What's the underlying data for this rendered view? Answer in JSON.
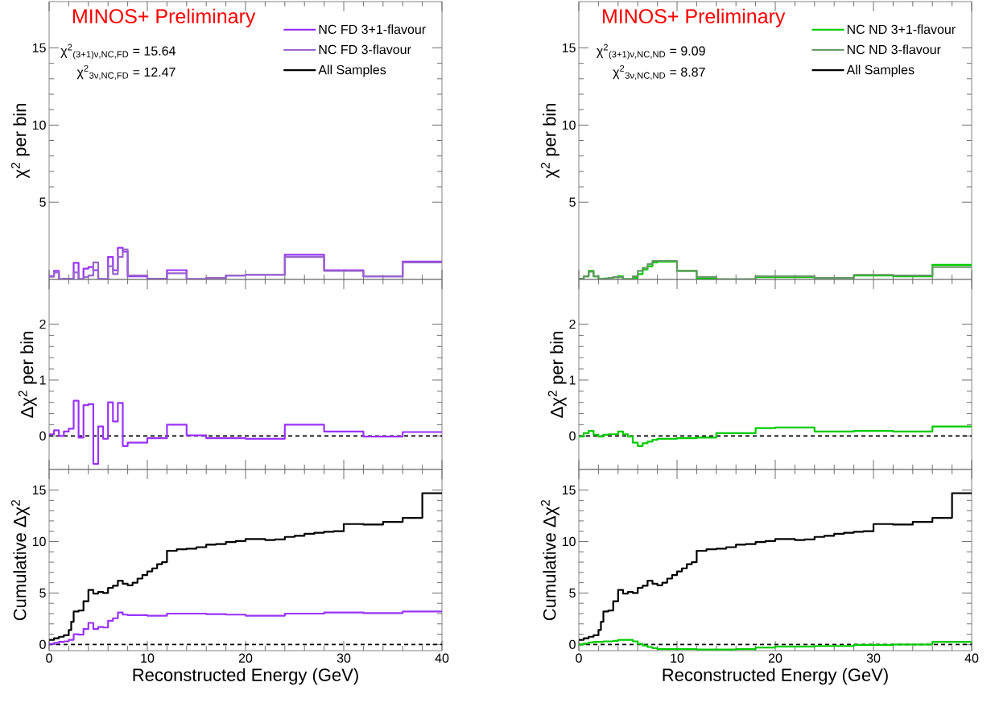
{
  "chart_data": [
    {
      "type": "step",
      "title": "MINOS+ Preliminary",
      "ylabel": "χ$^{2}$ per bin",
      "annotations": [
        "χ$^{2}$$_{(3+1)ν,NC,FD}$ = 15.64",
        "χ$^{2}$$_{3ν,NC,FD}$ = 12.47"
      ],
      "x": [
        0,
        0.5,
        1,
        1.5,
        2,
        2.5,
        3,
        3.5,
        4,
        4.5,
        5,
        5.5,
        6,
        6.5,
        7,
        7.5,
        8,
        10,
        12,
        14,
        16,
        18,
        20,
        24,
        28,
        32,
        36,
        40
      ],
      "series": [
        {
          "name": "NC FD 3+1-flavour",
          "color": "#9933ff",
          "values": [
            0.22,
            0.56,
            0.02,
            0.05,
            0.05,
            1.08,
            0.02,
            0.7,
            0.8,
            0.6,
            0.02,
            0.02,
            1.45,
            0.6,
            2.05,
            1.8,
            0.2,
            0.05,
            0.6,
            0.02,
            0.1,
            0.25,
            0.3,
            1.6,
            0.6,
            0.2,
            1.15,
            1.15
          ]
        },
        {
          "name": "NC FD 3-flavour",
          "color": "#9966cc",
          "values": [
            0.18,
            0.45,
            0.02,
            0.05,
            0.05,
            0.45,
            0.02,
            0.15,
            0.25,
            1.1,
            0.02,
            0.02,
            0.85,
            0.35,
            1.45,
            1.95,
            0.25,
            0.05,
            0.4,
            0.02,
            0.1,
            0.25,
            0.3,
            1.45,
            0.55,
            0.2,
            1.1,
            1.1
          ]
        }
      ],
      "xlim": [
        0,
        40
      ],
      "ylim": [
        0,
        18
      ],
      "xticks": [
        0,
        10,
        20,
        30,
        40
      ],
      "yticks": [
        5,
        10,
        15
      ],
      "tick_labels": "y",
      "legend": "top right"
    },
    {
      "type": "step",
      "title": "MINOS+ Preliminary",
      "ylabel": "χ$^{2}$ per bin",
      "annotations": [
        "χ$^{2}$$_{(3+1)ν,NC,ND}$ = 9.09",
        "χ$^{2}$$_{3ν,NC,ND}$ = 8.87"
      ],
      "x": [
        0,
        0.5,
        1,
        1.5,
        2,
        2.5,
        3,
        3.5,
        4,
        4.5,
        5,
        5.5,
        6,
        6.5,
        7,
        7.5,
        8,
        10,
        12,
        14,
        16,
        18,
        20,
        24,
        28,
        32,
        36,
        40
      ],
      "series": [
        {
          "name": "NC ND 3+1-flavour",
          "color": "#00cc00",
          "values": [
            0.05,
            0.2,
            0.55,
            0.2,
            0.02,
            0.06,
            0.1,
            0.15,
            0.2,
            0.02,
            0.02,
            0.1,
            0.35,
            0.65,
            0.85,
            1.1,
            1.15,
            0.55,
            0.05,
            0.0,
            0.0,
            0.15,
            0.15,
            0.1,
            0.25,
            0.2,
            0.95,
            0.95
          ]
        },
        {
          "name": "NC ND 3-flavour",
          "color": "#669966",
          "values": [
            0.05,
            0.2,
            0.5,
            0.2,
            0.02,
            0.05,
            0.1,
            0.15,
            0.15,
            0.02,
            0.02,
            0.2,
            0.55,
            0.75,
            1.0,
            1.2,
            1.2,
            0.55,
            0.15,
            0.02,
            0.02,
            0.2,
            0.2,
            0.1,
            0.3,
            0.25,
            0.8,
            0.8
          ]
        }
      ],
      "xlim": [
        0,
        40
      ],
      "ylim": [
        0,
        18
      ],
      "xticks": [
        0,
        10,
        20,
        30,
        40
      ],
      "yticks": [
        5,
        10,
        15
      ],
      "tick_labels": "y",
      "legend": "top right"
    },
    {
      "type": "step",
      "ylabel": "Δχ$^{2}$ per bin",
      "x": [
        0,
        0.5,
        1,
        1.5,
        2,
        2.5,
        3,
        3.5,
        4,
        4.5,
        5,
        5.5,
        6,
        6.5,
        7,
        7.5,
        8,
        10,
        12,
        14,
        16,
        18,
        20,
        24,
        28,
        32,
        36,
        40
      ],
      "series": [
        {
          "color": "#9933ff",
          "values": [
            0.03,
            0.1,
            0.0,
            0.08,
            0.13,
            0.63,
            -0.03,
            0.55,
            0.57,
            -0.5,
            0.17,
            -0.05,
            0.6,
            0.26,
            0.59,
            -0.18,
            -0.12,
            -0.04,
            0.2,
            0.01,
            -0.04,
            -0.04,
            -0.05,
            0.2,
            0.08,
            -0.01,
            0.07,
            0.07
          ]
        }
      ],
      "ref_lines": [
        {
          "axis": "y",
          "value": 0,
          "color": "#000000",
          "line_style": "dashed"
        }
      ],
      "xlim": [
        0,
        40
      ],
      "ylim": [
        -0.6,
        2.8
      ],
      "xticks": [
        0,
        10,
        20,
        30,
        40
      ],
      "yticks": [
        0,
        1,
        2
      ],
      "tick_labels": "y"
    },
    {
      "type": "step",
      "ylabel": "Δχ$^{2}$ per bin",
      "x": [
        0,
        0.5,
        1,
        1.5,
        2,
        2.5,
        3,
        3.5,
        4,
        4.5,
        5,
        5.5,
        6,
        6.5,
        7,
        7.5,
        8,
        10,
        12,
        14,
        16,
        18,
        20,
        24,
        28,
        32,
        36,
        40
      ],
      "series": [
        {
          "color": "#00cc00",
          "values": [
            -0.01,
            0.05,
            0.09,
            0.02,
            -0.01,
            0.02,
            0.03,
            0.03,
            0.08,
            0.03,
            -0.01,
            -0.12,
            -0.18,
            -0.13,
            -0.1,
            -0.07,
            -0.05,
            -0.04,
            -0.03,
            0.05,
            0.05,
            0.14,
            0.15,
            0.08,
            0.09,
            0.08,
            0.17,
            0.17
          ]
        }
      ],
      "ref_lines": [
        {
          "axis": "y",
          "value": 0,
          "color": "#000000",
          "line_style": "dashed"
        }
      ],
      "xlim": [
        0,
        40
      ],
      "ylim": [
        -0.6,
        2.8
      ],
      "xticks": [
        0,
        10,
        20,
        30,
        40
      ],
      "yticks": [
        0,
        1,
        2
      ],
      "tick_labels": "y"
    },
    {
      "type": "step",
      "ylabel": "Cumulative Δχ$^{2}$",
      "xlabel": "Reconstructed Energy (GeV)",
      "x": [
        0,
        0.5,
        1,
        1.5,
        2,
        2.5,
        3,
        3.5,
        4,
        4.5,
        5,
        5.5,
        6,
        6.5,
        7,
        7.5,
        8,
        10,
        12,
        14,
        16,
        18,
        20,
        24,
        28,
        32,
        36,
        40
      ],
      "series": [
        {
          "name": "All Samples",
          "color": "#000000",
          "x": [
            0,
            0.5,
            1,
            1.5,
            2,
            2.25,
            2.5,
            3,
            3.5,
            4,
            4.5,
            5,
            5.5,
            6,
            6.5,
            7,
            7.5,
            8,
            8.5,
            9,
            9.5,
            10,
            10.5,
            11,
            11.5,
            12,
            13,
            14,
            15,
            16,
            17,
            18,
            19,
            20,
            21,
            22,
            23,
            24,
            25,
            26,
            27,
            28,
            29,
            30,
            32,
            34,
            36,
            38,
            40
          ],
          "values": [
            0.45,
            0.6,
            0.75,
            0.9,
            1.4,
            2.2,
            3.2,
            3.3,
            4.2,
            5.3,
            4.95,
            5.1,
            5.0,
            5.5,
            5.7,
            6.2,
            5.9,
            5.75,
            6.0,
            6.4,
            6.75,
            7.1,
            7.4,
            7.8,
            8.0,
            9.1,
            9.25,
            9.3,
            9.45,
            9.7,
            9.75,
            9.95,
            10.05,
            10.25,
            10.25,
            10.15,
            10.2,
            10.45,
            10.55,
            10.75,
            10.85,
            10.95,
            11.0,
            11.7,
            11.65,
            11.9,
            12.3,
            14.7,
            14.7
          ]
        },
        {
          "color": "#9933ff",
          "values": [
            0.05,
            0.15,
            0.25,
            0.3,
            0.45,
            1.0,
            0.95,
            1.5,
            2.1,
            1.5,
            1.7,
            1.65,
            2.3,
            2.55,
            3.1,
            2.9,
            2.85,
            2.8,
            3.0,
            3.0,
            2.95,
            2.9,
            2.8,
            3.0,
            3.1,
            3.05,
            3.2,
            3.2
          ]
        }
      ],
      "ref_lines": [
        {
          "axis": "y",
          "value": 0,
          "color": "#000000",
          "line_style": "dashed"
        }
      ],
      "xlim": [
        0,
        40
      ],
      "ylim": [
        -0.6,
        17
      ],
      "xticks": [
        0,
        10,
        20,
        30,
        40
      ],
      "yticks": [
        0,
        5,
        10,
        15
      ]
    },
    {
      "type": "step",
      "ylabel": "Cumulative Δχ$^{2}$",
      "xlabel": "Reconstructed Energy (GeV)",
      "x": [
        0,
        0.5,
        1,
        1.5,
        2,
        2.5,
        3,
        3.5,
        4,
        4.5,
        5,
        5.5,
        6,
        6.5,
        7,
        7.5,
        8,
        10,
        12,
        14,
        16,
        18,
        20,
        24,
        28,
        32,
        36,
        40
      ],
      "series": [
        {
          "name": "All Samples",
          "color": "#000000",
          "x": [
            0,
            0.5,
            1,
            1.5,
            2,
            2.25,
            2.5,
            3,
            3.5,
            4,
            4.5,
            5,
            5.5,
            6,
            6.5,
            7,
            7.5,
            8,
            8.5,
            9,
            9.5,
            10,
            10.5,
            11,
            11.5,
            12,
            13,
            14,
            15,
            16,
            17,
            18,
            19,
            20,
            21,
            22,
            23,
            24,
            25,
            26,
            27,
            28,
            29,
            30,
            32,
            34,
            36,
            38,
            40
          ],
          "values": [
            0.45,
            0.6,
            0.75,
            0.9,
            1.4,
            2.2,
            3.2,
            3.3,
            4.2,
            5.3,
            4.95,
            5.1,
            5.0,
            5.5,
            5.7,
            6.2,
            5.9,
            5.75,
            6.0,
            6.4,
            6.75,
            7.1,
            7.4,
            7.8,
            8.0,
            9.1,
            9.25,
            9.3,
            9.45,
            9.7,
            9.75,
            9.95,
            10.05,
            10.25,
            10.25,
            10.15,
            10.2,
            10.45,
            10.55,
            10.75,
            10.85,
            10.95,
            11.0,
            11.7,
            11.65,
            11.9,
            12.3,
            14.7,
            14.7
          ]
        },
        {
          "color": "#00cc00",
          "values": [
            0.0,
            0.1,
            0.2,
            0.25,
            0.25,
            0.3,
            0.3,
            0.35,
            0.45,
            0.45,
            0.45,
            0.3,
            0.05,
            -0.1,
            -0.25,
            -0.35,
            -0.45,
            -0.45,
            -0.5,
            -0.5,
            -0.45,
            -0.3,
            -0.2,
            -0.15,
            -0.05,
            0.0,
            0.25,
            0.25
          ]
        }
      ],
      "ref_lines": [
        {
          "axis": "y",
          "value": 0,
          "color": "#000000",
          "line_style": "dashed"
        }
      ],
      "xlim": [
        0,
        40
      ],
      "ylim": [
        -0.6,
        17
      ],
      "xticks": [
        0,
        10,
        20,
        30,
        40
      ],
      "yticks": [
        0,
        5,
        10,
        15
      ]
    }
  ]
}
